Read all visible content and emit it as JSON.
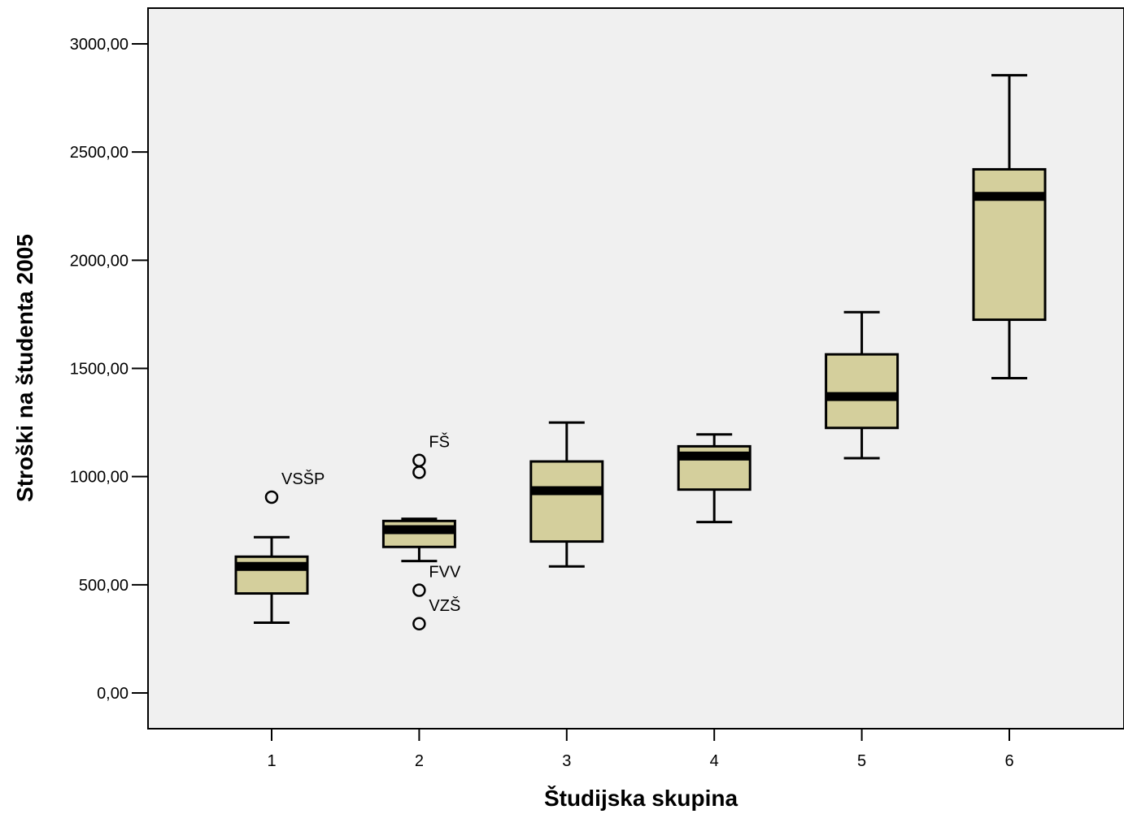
{
  "chart_data": {
    "type": "box",
    "title": "",
    "xlabel": "Študijska skupina",
    "ylabel": "Stroški na študenta 2005",
    "ylim": [
      -165,
      3165
    ],
    "y_ticks": [
      {
        "value": 0,
        "label": "0,00"
      },
      {
        "value": 500,
        "label": "500,00"
      },
      {
        "value": 1000,
        "label": "1000,00"
      },
      {
        "value": 1500,
        "label": "1500,00"
      },
      {
        "value": 2000,
        "label": "2000,00"
      },
      {
        "value": 2500,
        "label": "2500,00"
      },
      {
        "value": 3000,
        "label": "3000,00"
      }
    ],
    "grid": false,
    "categories": [
      "1",
      "2",
      "3",
      "4",
      "5",
      "6"
    ],
    "boxes": [
      {
        "category": "1",
        "whisker_low": 325,
        "q1": 460,
        "median": 585,
        "q3": 630,
        "whisker_high": 720
      },
      {
        "category": "2",
        "whisker_low": 610,
        "q1": 675,
        "median": 755,
        "q3": 795,
        "whisker_high": 805
      },
      {
        "category": "3",
        "whisker_low": 585,
        "q1": 700,
        "median": 935,
        "q3": 1070,
        "whisker_high": 1250
      },
      {
        "category": "4",
        "whisker_low": 790,
        "q1": 940,
        "median": 1095,
        "q3": 1140,
        "whisker_high": 1195
      },
      {
        "category": "5",
        "whisker_low": 1085,
        "q1": 1225,
        "median": 1370,
        "q3": 1565,
        "whisker_high": 1760
      },
      {
        "category": "6",
        "whisker_low": 1455,
        "q1": 1725,
        "median": 2295,
        "q3": 2420,
        "whisker_high": 2855
      }
    ],
    "outliers": [
      {
        "category": "1",
        "value": 905,
        "label": "VSŠP"
      },
      {
        "category": "2",
        "value": 1075,
        "label": "FŠ"
      },
      {
        "category": "2",
        "value": 1020,
        "label": ""
      },
      {
        "category": "2",
        "value": 475,
        "label": "FVV"
      },
      {
        "category": "2",
        "value": 320,
        "label": "VZŠ"
      }
    ],
    "colors": {
      "box_fill": "#d4cf9c",
      "plot_background": "#f0f0f0",
      "stroke": "#000000"
    }
  }
}
